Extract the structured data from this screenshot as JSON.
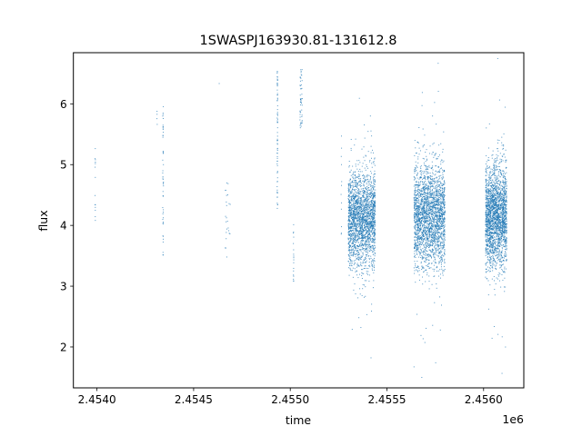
{
  "chart_data": {
    "type": "scatter",
    "title": "1SWASPJ163930.81-131612.8",
    "xlabel": "time",
    "ylabel": "flux",
    "x_offset_text": "1e6",
    "xlim": [
      2453878,
      2456208
    ],
    "ylim": [
      1.327,
      6.842
    ],
    "x_ticks": [
      2454000,
      2454500,
      2455000,
      2455500,
      2456000
    ],
    "x_tick_labels": [
      "2.4540",
      "2.4545",
      "2.4550",
      "2.4555",
      "2.4560"
    ],
    "y_ticks": [
      2,
      3,
      4,
      5,
      6
    ],
    "y_tick_labels": [
      "2",
      "3",
      "4",
      "5",
      "6"
    ],
    "grid": false,
    "legend": "none",
    "marker_color": "#1f77b4",
    "point_groups": [
      {
        "x_range": [
          2453990,
          2453992
        ],
        "y_range": [
          3.8,
          5.27
        ],
        "n": 14
      },
      {
        "x_range": [
          2454310,
          2454312
        ],
        "y_range": [
          5.55,
          6.2
        ],
        "n": 4
      },
      {
        "x_range": [
          2454340,
          2454344
        ],
        "y_range": [
          3.5,
          5.96
        ],
        "n": 50
      },
      {
        "x_range": [
          2454631,
          2454633
        ],
        "y_range": [
          6.33,
          6.34
        ],
        "n": 1
      },
      {
        "x_range": [
          2454662,
          2454690
        ],
        "y_range": [
          3.47,
          4.72
        ],
        "n": 24
      },
      {
        "x_range": [
          2454932,
          2454935
        ],
        "y_range": [
          4.27,
          6.55
        ],
        "n": 70
      },
      {
        "x_range": [
          2455016,
          2455018
        ],
        "y_range": [
          3.03,
          4.03
        ],
        "n": 18
      },
      {
        "x_range": [
          2455050,
          2455062
        ],
        "y_range": [
          5.6,
          6.6
        ],
        "n": 50
      },
      {
        "x_range": [
          2455262,
          2455266
        ],
        "y_range": [
          3.8,
          5.6
        ],
        "n": 12
      },
      {
        "x_range": [
          2455300,
          2455440
        ],
        "y_mean": 4.1,
        "y_sd": 0.38,
        "n": 2200
      },
      {
        "x_range": [
          2455640,
          2455800
        ],
        "y_mean": 4.15,
        "y_sd": 0.42,
        "n": 2400
      },
      {
        "x_range": [
          2456010,
          2456120
        ],
        "y_mean": 4.15,
        "y_sd": 0.4,
        "n": 2200
      }
    ]
  }
}
